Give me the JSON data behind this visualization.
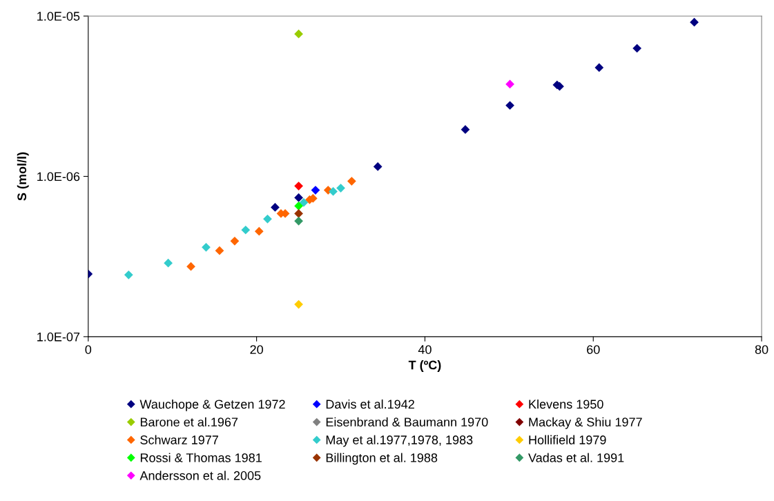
{
  "chart_data": {
    "type": "scatter",
    "xlabel": "T (ºC)",
    "ylabel": "S (mol/l)",
    "log": "y",
    "xlim": [
      0,
      80
    ],
    "xticks": [
      0,
      20,
      40,
      60,
      80
    ],
    "ylim": [
      1e-07,
      1e-05
    ],
    "yticks": [
      {
        "value": 1e-07,
        "label": "1.0E-07"
      },
      {
        "value": 1e-06,
        "label": "1.0E-06"
      },
      {
        "value": 1e-05,
        "label": "1.0E-05"
      }
    ],
    "marker": "diamond",
    "grid": false,
    "legend": "bottom",
    "series": [
      {
        "name": "Wauchope & Getzen 1972",
        "color": "#000080",
        "x": [
          0,
          22.2,
          25,
          34.4,
          44.8,
          50.1,
          55.7,
          56.0,
          60.7,
          65.2,
          72.0
        ],
        "values": [
          2.46e-07,
          6.41e-07,
          7.36e-07,
          1.15e-06,
          1.96e-06,
          2.77e-06,
          3.72e-06,
          3.64e-06,
          4.77e-06,
          6.29e-06,
          9.15e-06
        ]
      },
      {
        "name": "Davis et al.1942",
        "color": "#0000ff",
        "x": [
          27.0
        ],
        "values": [
          8.2e-07
        ]
      },
      {
        "name": "Klevens 1950",
        "color": "#ff0000",
        "x": [
          25
        ],
        "values": [
          8.7e-07
        ]
      },
      {
        "name": "Barone et al.1967",
        "color": "#99cc00",
        "x": [
          25
        ],
        "values": [
          7.73e-06
        ]
      },
      {
        "name": "Eisenbrand & Baumann 1970",
        "color": "#808080",
        "x": [
          null
        ],
        "values": [
          null
        ]
      },
      {
        "name": "Mackay & Shiu 1977",
        "color": "#800000",
        "x": [
          null
        ],
        "values": [
          null
        ]
      },
      {
        "name": "Schwarz 1977",
        "color": "#ff6600",
        "x": [
          12.2,
          15.6,
          17.4,
          20.3,
          22.9,
          23.4,
          null,
          26.3,
          26.7,
          28.5,
          31.3
        ],
        "values": [
          2.74e-07,
          3.44e-07,
          3.95e-07,
          4.54e-07,
          5.86e-07,
          5.86e-07,
          null,
          7.15e-07,
          7.29e-07,
          8.2e-07,
          9.33e-07
        ]
      },
      {
        "name": "May et al.1977,1978, 1983",
        "color": "#33cccc",
        "x": [
          4.8,
          9.5,
          14.0,
          18.7,
          21.3,
          25.6,
          29.1,
          30.0
        ],
        "values": [
          2.43e-07,
          2.88e-07,
          3.61e-07,
          4.63e-07,
          5.42e-07,
          6.87e-07,
          8.05e-07,
          8.45e-07
        ]
      },
      {
        "name": "Hollifield 1979",
        "color": "#ffcc00",
        "x": [
          25
        ],
        "values": [
          1.59e-07
        ]
      },
      {
        "name": "Rossi & Thomas 1981",
        "color": "#00ff00",
        "x": [
          25
        ],
        "values": [
          6.54e-07
        ]
      },
      {
        "name": "Billington et al. 1988",
        "color": "#993300",
        "x": [
          25
        ],
        "values": [
          5.86e-07
        ]
      },
      {
        "name": "Vadas et al. 1991",
        "color": "#339966",
        "x": [
          25
        ],
        "values": [
          5.26e-07
        ]
      },
      {
        "name": "Andersson et al. 2005",
        "color": "#ff00ff",
        "x": [
          50.1
        ],
        "values": [
          3.76e-06
        ]
      }
    ]
  }
}
